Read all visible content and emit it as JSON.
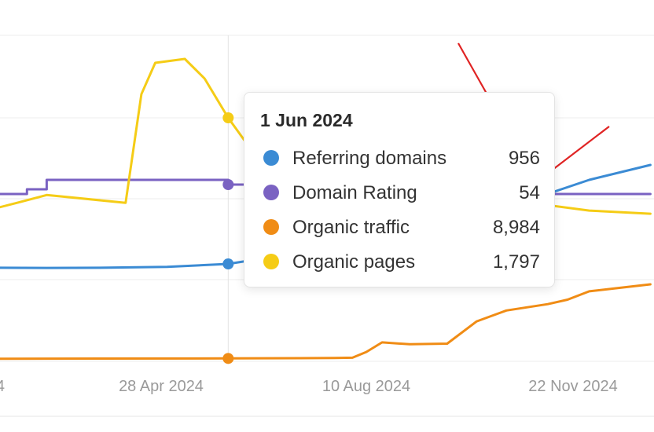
{
  "chart_data": {
    "type": "line",
    "x_ticks": [
      "4",
      "28 Apr 2024",
      "10 Aug 2024",
      "22 Nov 2024"
    ],
    "colors": {
      "Referring domains": "#3b8bd4",
      "Domain Rating": "#7a62c2",
      "Organic traffic": "#f08c15",
      "Organic pages": "#f5cc16"
    },
    "series": [
      {
        "name": "Referring domains",
        "x": [
          "2024-01-01",
          "2024-02-01",
          "2024-03-01",
          "2024-04-01",
          "2024-05-01",
          "2024-06-01",
          "2024-07-01",
          "2024-08-01",
          "2024-09-01",
          "2024-10-01",
          "2024-11-01",
          "2024-12-01",
          "2025-01-01"
        ],
        "y": [
          830,
          832,
          828,
          836,
          860,
          956,
          1050,
          1150,
          1280,
          1420,
          1600,
          1800,
          1950
        ]
      },
      {
        "name": "Domain Rating",
        "x": [
          "2024-01-01",
          "2024-02-14",
          "2024-02-20",
          "2024-03-01",
          "2024-04-20",
          "2024-06-01",
          "2024-11-01",
          "2024-12-01",
          "2025-01-01"
        ],
        "y": [
          52,
          52,
          53,
          55,
          55,
          54,
          52,
          52,
          52
        ]
      },
      {
        "name": "Organic traffic",
        "x": [
          "2024-01-01",
          "2024-03-01",
          "2024-06-01",
          "2024-07-25",
          "2024-08-03",
          "2024-08-10",
          "2024-08-18",
          "2024-09-01",
          "2024-09-20",
          "2024-10-05",
          "2024-10-20",
          "2024-11-10",
          "2024-11-20",
          "2024-12-01",
          "2024-12-15",
          "2025-01-01"
        ],
        "y": [
          8900,
          8950,
          8984,
          9050,
          9100,
          10000,
          11500,
          11200,
          11300,
          14800,
          16500,
          17500,
          18200,
          19500,
          20000,
          20600
        ]
      },
      {
        "name": "Organic pages",
        "x": [
          "2024-01-01",
          "2024-01-15",
          "2024-02-15",
          "2024-03-01",
          "2024-04-10",
          "2024-04-18",
          "2024-04-25",
          "2024-05-10",
          "2024-05-20",
          "2024-06-01",
          "2024-06-15",
          "2024-11-01",
          "2024-12-01",
          "2025-01-01"
        ],
        "y": [
          1200,
          1150,
          1250,
          1300,
          1250,
          2100,
          2500,
          2550,
          2300,
          1797,
          1550,
          1250,
          1200,
          1180
        ]
      }
    ],
    "tooltip": {
      "date": "1 Jun 2024",
      "rows": [
        {
          "name": "Referring domains",
          "value": "956",
          "color": "#3b8bd4"
        },
        {
          "name": "Domain Rating",
          "value": "54",
          "color": "#7a62c2"
        },
        {
          "name": "Organic traffic",
          "value": "8,984",
          "color": "#f08c15"
        },
        {
          "name": "Organic pages",
          "value": "1,797",
          "color": "#f5cc16"
        }
      ]
    },
    "annotations": [
      {
        "type": "arrow",
        "color": "#e02424",
        "points_to": "956"
      },
      {
        "type": "arrow",
        "color": "#e02424",
        "points_to": "54"
      }
    ],
    "grid": true
  }
}
